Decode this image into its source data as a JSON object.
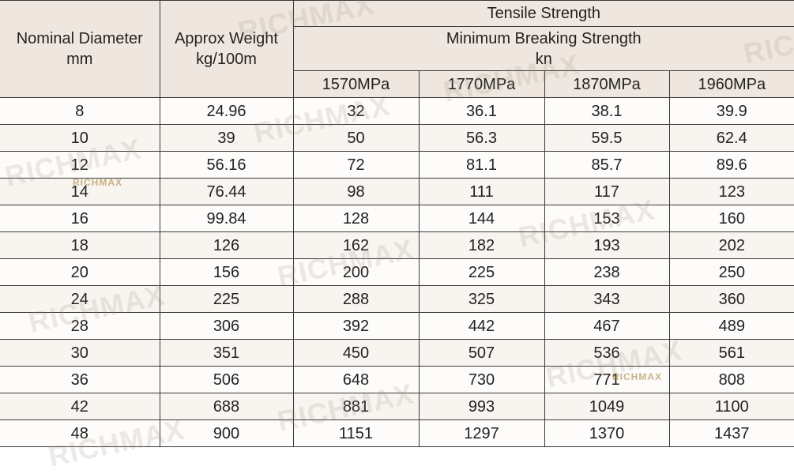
{
  "table": {
    "headers": {
      "diameter": [
        "Nominal Diameter",
        "mm"
      ],
      "weight": [
        "Approx Weight",
        "kg/100m"
      ],
      "tensile": "Tensile Strength",
      "breaking": [
        "Minimum Breaking Strength",
        "kn"
      ],
      "grades": [
        "1570MPa",
        "1770MPa",
        "1870MPa",
        "1960MPa"
      ]
    },
    "rows": [
      [
        8,
        24.96,
        32,
        36.1,
        38.1,
        39.9
      ],
      [
        10,
        39,
        50,
        56.3,
        59.5,
        62.4
      ],
      [
        12,
        56.16,
        72,
        81.1,
        85.7,
        89.6
      ],
      [
        14,
        76.44,
        98,
        111,
        117,
        123
      ],
      [
        16,
        99.84,
        128,
        144,
        153,
        160
      ],
      [
        18,
        126,
        162,
        182,
        193,
        202
      ],
      [
        20,
        156,
        200,
        225,
        238,
        250
      ],
      [
        24,
        225,
        288,
        325,
        343,
        360
      ],
      [
        28,
        306,
        392,
        442,
        467,
        489
      ],
      [
        30,
        351,
        450,
        507,
        536,
        561
      ],
      [
        36,
        506,
        648,
        730,
        771,
        808
      ],
      [
        42,
        688,
        881,
        993,
        1049,
        1100
      ],
      [
        48,
        900,
        1151,
        1297,
        1370,
        1437
      ]
    ]
  },
  "watermark": "RICHMAX"
}
